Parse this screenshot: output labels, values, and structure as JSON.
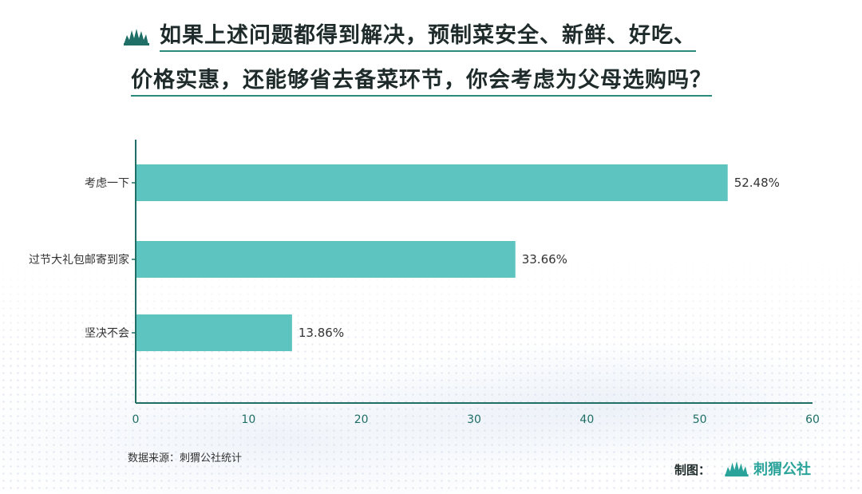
{
  "title": {
    "line1": "如果上述问题都得到解决，预制菜安全、新鲜、好吃、",
    "line2": "价格实惠，还能够省去备菜环节，你会考虑为父母选购吗？"
  },
  "chart_data": {
    "type": "bar",
    "orientation": "horizontal",
    "categories": [
      "考虑一下",
      "过节大礼包邮寄到家",
      "坚决不会"
    ],
    "values": [
      52.48,
      33.66,
      13.86
    ],
    "value_labels": [
      "52.48%",
      "33.66%",
      "13.86%"
    ],
    "xlim": [
      0,
      60
    ],
    "xticks": [
      0,
      10,
      20,
      30,
      40,
      50,
      60
    ],
    "xtick_labels": [
      "0",
      "10",
      "20",
      "30",
      "40",
      "50",
      "60"
    ],
    "bar_color": "#5ec4c0",
    "axis_color": "#1f6f66",
    "tick_label_color": "#1f6f66",
    "grid": false
  },
  "footer": {
    "source": "数据来源：刺猬公社统计",
    "credit_label": "制图：",
    "brand": "刺猬公社",
    "brand_color": "#2aa39a",
    "logo_icon": "hedgehog-logo-icon"
  }
}
